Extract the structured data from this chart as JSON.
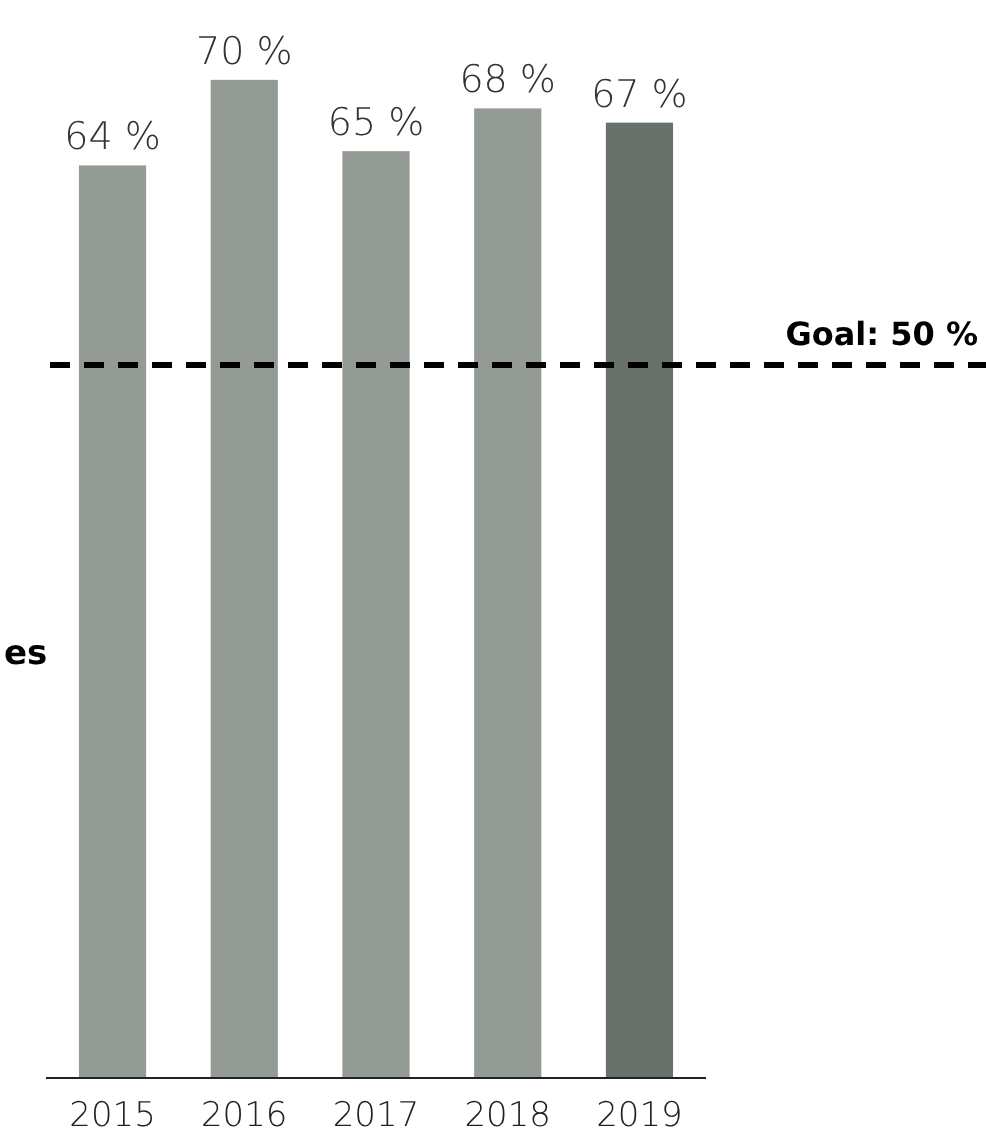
{
  "chart_data": {
    "type": "bar",
    "categories": [
      "2015",
      "2016",
      "2017",
      "2018",
      "2019"
    ],
    "values": [
      64,
      70,
      65,
      68,
      67
    ],
    "colors": [
      "#939b94",
      "#939b94",
      "#939b94",
      "#939b94",
      "#68726a"
    ],
    "value_labels": [
      "64 %",
      "70 %",
      "65 %",
      "68 %",
      "67 %"
    ],
    "ref_lines": [
      {
        "axis": "y",
        "value": 50,
        "label": "Goal: 50 %",
        "color": "#000000",
        "line_style": "dashed"
      }
    ],
    "annotations": [
      "es"
    ],
    "grid": false
  }
}
